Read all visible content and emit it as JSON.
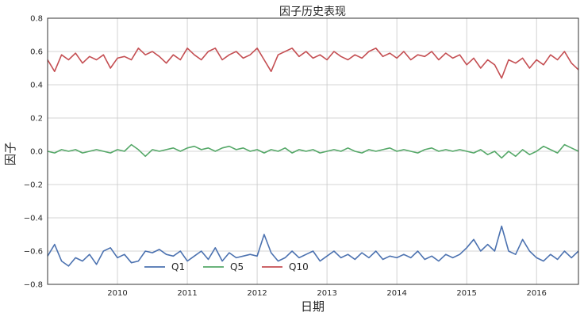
{
  "chart_data": {
    "type": "line",
    "title": "因子历史表现",
    "xlabel": "日期",
    "ylabel": "因子",
    "xlim": [
      2009.0,
      2016.6
    ],
    "ylim": [
      -0.8,
      0.8
    ],
    "grid": true,
    "legend_position": "bottom-center",
    "x_ticks": [
      {
        "value": 2010,
        "label": "2010"
      },
      {
        "value": 2011,
        "label": "2011"
      },
      {
        "value": 2012,
        "label": "2012"
      },
      {
        "value": 2013,
        "label": "2013"
      },
      {
        "value": 2014,
        "label": "2014"
      },
      {
        "value": 2015,
        "label": "2015"
      },
      {
        "value": 2016,
        "label": "2016"
      }
    ],
    "y_ticks": [
      {
        "value": 0.8,
        "label": "0.8"
      },
      {
        "value": 0.6,
        "label": "0.6"
      },
      {
        "value": 0.4,
        "label": "0.4"
      },
      {
        "value": 0.2,
        "label": "0.2"
      },
      {
        "value": 0.0,
        "label": "0.0"
      },
      {
        "value": -0.2,
        "label": "−0.2"
      },
      {
        "value": -0.4,
        "label": "−0.4"
      },
      {
        "value": -0.6,
        "label": "−0.6"
      },
      {
        "value": -0.8,
        "label": "−0.8"
      }
    ],
    "series": [
      {
        "name": "Q1",
        "color": "#4c72b0",
        "x": [
          2009.0,
          2009.1,
          2009.2,
          2009.3,
          2009.4,
          2009.5,
          2009.6,
          2009.7,
          2009.8,
          2009.9,
          2010.0,
          2010.1,
          2010.2,
          2010.3,
          2010.4,
          2010.5,
          2010.6,
          2010.7,
          2010.8,
          2010.9,
          2011.0,
          2011.1,
          2011.2,
          2011.3,
          2011.4,
          2011.5,
          2011.6,
          2011.7,
          2011.8,
          2011.9,
          2012.0,
          2012.1,
          2012.2,
          2012.3,
          2012.4,
          2012.5,
          2012.6,
          2012.7,
          2012.8,
          2012.9,
          2013.0,
          2013.1,
          2013.2,
          2013.3,
          2013.4,
          2013.5,
          2013.6,
          2013.7,
          2013.8,
          2013.9,
          2014.0,
          2014.1,
          2014.2,
          2014.3,
          2014.4,
          2014.5,
          2014.6,
          2014.7,
          2014.8,
          2014.9,
          2015.0,
          2015.1,
          2015.2,
          2015.3,
          2015.4,
          2015.5,
          2015.6,
          2015.7,
          2015.8,
          2015.9,
          2016.0,
          2016.1,
          2016.2,
          2016.3,
          2016.4,
          2016.5,
          2016.6
        ],
        "values": [
          -0.63,
          -0.56,
          -0.66,
          -0.69,
          -0.64,
          -0.66,
          -0.62,
          -0.68,
          -0.6,
          -0.58,
          -0.64,
          -0.62,
          -0.67,
          -0.66,
          -0.6,
          -0.61,
          -0.59,
          -0.62,
          -0.63,
          -0.6,
          -0.66,
          -0.63,
          -0.6,
          -0.65,
          -0.58,
          -0.66,
          -0.61,
          -0.64,
          -0.63,
          -0.62,
          -0.63,
          -0.5,
          -0.61,
          -0.66,
          -0.64,
          -0.6,
          -0.64,
          -0.62,
          -0.6,
          -0.66,
          -0.63,
          -0.6,
          -0.64,
          -0.62,
          -0.65,
          -0.61,
          -0.64,
          -0.6,
          -0.65,
          -0.63,
          -0.64,
          -0.62,
          -0.64,
          -0.6,
          -0.65,
          -0.63,
          -0.66,
          -0.62,
          -0.64,
          -0.62,
          -0.58,
          -0.53,
          -0.6,
          -0.56,
          -0.6,
          -0.45,
          -0.6,
          -0.62,
          -0.53,
          -0.6,
          -0.64,
          -0.66,
          -0.62,
          -0.65,
          -0.6,
          -0.64,
          -0.6
        ]
      },
      {
        "name": "Q5",
        "color": "#55a868",
        "x": [
          2009.0,
          2009.1,
          2009.2,
          2009.3,
          2009.4,
          2009.5,
          2009.6,
          2009.7,
          2009.8,
          2009.9,
          2010.0,
          2010.1,
          2010.2,
          2010.3,
          2010.4,
          2010.5,
          2010.6,
          2010.7,
          2010.8,
          2010.9,
          2011.0,
          2011.1,
          2011.2,
          2011.3,
          2011.4,
          2011.5,
          2011.6,
          2011.7,
          2011.8,
          2011.9,
          2012.0,
          2012.1,
          2012.2,
          2012.3,
          2012.4,
          2012.5,
          2012.6,
          2012.7,
          2012.8,
          2012.9,
          2013.0,
          2013.1,
          2013.2,
          2013.3,
          2013.4,
          2013.5,
          2013.6,
          2013.7,
          2013.8,
          2013.9,
          2014.0,
          2014.1,
          2014.2,
          2014.3,
          2014.4,
          2014.5,
          2014.6,
          2014.7,
          2014.8,
          2014.9,
          2015.0,
          2015.1,
          2015.2,
          2015.3,
          2015.4,
          2015.5,
          2015.6,
          2015.7,
          2015.8,
          2015.9,
          2016.0,
          2016.1,
          2016.2,
          2016.3,
          2016.4,
          2016.5,
          2016.6
        ],
        "values": [
          0.0,
          -0.01,
          0.01,
          0.0,
          0.01,
          -0.01,
          0.0,
          0.01,
          0.0,
          -0.01,
          0.01,
          0.0,
          0.04,
          0.01,
          -0.03,
          0.01,
          0.0,
          0.01,
          0.02,
          0.0,
          0.02,
          0.03,
          0.01,
          0.02,
          0.0,
          0.02,
          0.03,
          0.01,
          0.02,
          0.0,
          0.01,
          -0.01,
          0.01,
          0.0,
          0.02,
          -0.01,
          0.01,
          0.0,
          0.01,
          -0.01,
          0.0,
          0.01,
          0.0,
          0.02,
          0.0,
          -0.01,
          0.01,
          0.0,
          0.01,
          0.02,
          0.0,
          0.01,
          0.0,
          -0.01,
          0.01,
          0.02,
          0.0,
          0.01,
          0.0,
          0.01,
          0.0,
          -0.01,
          0.01,
          -0.02,
          0.0,
          -0.04,
          0.0,
          -0.03,
          0.01,
          -0.02,
          0.0,
          0.03,
          0.01,
          -0.01,
          0.04,
          0.02,
          0.0
        ]
      },
      {
        "name": "Q10",
        "color": "#c44e52",
        "x": [
          2009.0,
          2009.1,
          2009.2,
          2009.3,
          2009.4,
          2009.5,
          2009.6,
          2009.7,
          2009.8,
          2009.9,
          2010.0,
          2010.1,
          2010.2,
          2010.3,
          2010.4,
          2010.5,
          2010.6,
          2010.7,
          2010.8,
          2010.9,
          2011.0,
          2011.1,
          2011.2,
          2011.3,
          2011.4,
          2011.5,
          2011.6,
          2011.7,
          2011.8,
          2011.9,
          2012.0,
          2012.1,
          2012.2,
          2012.3,
          2012.4,
          2012.5,
          2012.6,
          2012.7,
          2012.8,
          2012.9,
          2013.0,
          2013.1,
          2013.2,
          2013.3,
          2013.4,
          2013.5,
          2013.6,
          2013.7,
          2013.8,
          2013.9,
          2014.0,
          2014.1,
          2014.2,
          2014.3,
          2014.4,
          2014.5,
          2014.6,
          2014.7,
          2014.8,
          2014.9,
          2015.0,
          2015.1,
          2015.2,
          2015.3,
          2015.4,
          2015.5,
          2015.6,
          2015.7,
          2015.8,
          2015.9,
          2016.0,
          2016.1,
          2016.2,
          2016.3,
          2016.4,
          2016.5,
          2016.6
        ],
        "values": [
          0.55,
          0.48,
          0.58,
          0.55,
          0.59,
          0.53,
          0.57,
          0.55,
          0.58,
          0.5,
          0.56,
          0.57,
          0.55,
          0.62,
          0.58,
          0.6,
          0.57,
          0.53,
          0.58,
          0.55,
          0.62,
          0.58,
          0.55,
          0.6,
          0.62,
          0.55,
          0.58,
          0.6,
          0.56,
          0.58,
          0.62,
          0.55,
          0.48,
          0.58,
          0.6,
          0.62,
          0.57,
          0.6,
          0.56,
          0.58,
          0.55,
          0.6,
          0.57,
          0.55,
          0.58,
          0.56,
          0.6,
          0.62,
          0.57,
          0.59,
          0.56,
          0.6,
          0.55,
          0.58,
          0.57,
          0.6,
          0.55,
          0.59,
          0.56,
          0.58,
          0.52,
          0.56,
          0.5,
          0.55,
          0.52,
          0.44,
          0.55,
          0.53,
          0.56,
          0.5,
          0.55,
          0.52,
          0.58,
          0.55,
          0.6,
          0.53,
          0.49
        ]
      }
    ]
  }
}
